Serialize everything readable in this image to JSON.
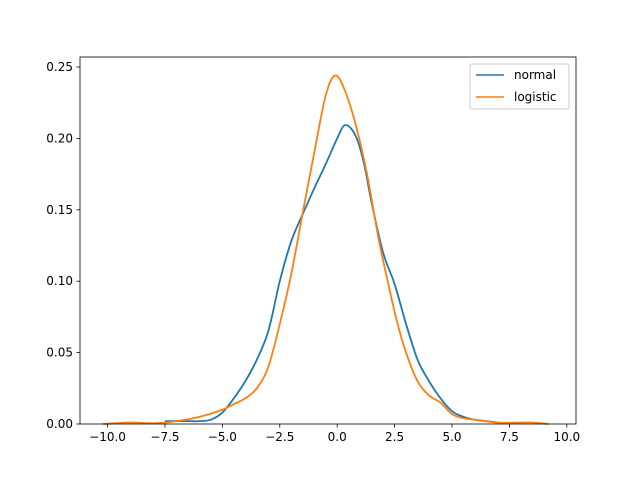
{
  "chart_data": {
    "type": "line",
    "title": "",
    "xlabel": "",
    "ylabel": "",
    "xlim": [
      -11.2,
      10.4
    ],
    "ylim": [
      0,
      0.257
    ],
    "xticks": [
      -10,
      -7.5,
      -5,
      -2.5,
      0,
      2.5,
      5,
      7.5,
      10
    ],
    "xtick_labels": [
      "−10.0",
      "−7.5",
      "−5.0",
      "−2.5",
      "0.0",
      "2.5",
      "5.0",
      "7.5",
      "10.0"
    ],
    "yticks": [
      0,
      0.05,
      0.1,
      0.15,
      0.2,
      0.25
    ],
    "ytick_labels": [
      "0.00",
      "0.05",
      "0.10",
      "0.15",
      "0.20",
      "0.25"
    ],
    "grid": false,
    "legend_position": "top-right",
    "series": [
      {
        "name": "normal",
        "color": "#1f77b4",
        "x": [
          -7.5,
          -6.5,
          -6,
          -5.5,
          -5,
          -4.5,
          -4,
          -3.5,
          -3,
          -2.5,
          -2,
          -1.5,
          -1,
          -0.5,
          0,
          0.3,
          0.6,
          0.9,
          1.2,
          1.5,
          2,
          2.5,
          3,
          3.5,
          4,
          4.5,
          5,
          5.5,
          6,
          6.5,
          7
        ],
        "y": [
          0.002,
          0.002,
          0.002,
          0.003,
          0.008,
          0.018,
          0.03,
          0.045,
          0.065,
          0.1,
          0.128,
          0.147,
          0.165,
          0.182,
          0.2,
          0.209,
          0.207,
          0.198,
          0.18,
          0.155,
          0.12,
          0.098,
          0.07,
          0.045,
          0.03,
          0.018,
          0.009,
          0.005,
          0.003,
          0.002,
          0.001
        ]
      },
      {
        "name": "logistic",
        "color": "#ff7f0e",
        "x": [
          -10.2,
          -9,
          -8,
          -7,
          -6,
          -5,
          -4.5,
          -4,
          -3.5,
          -3,
          -2.5,
          -2,
          -1.5,
          -1,
          -0.5,
          -0.1,
          0.3,
          0.8,
          1.3,
          1.8,
          2.2,
          2.6,
          3,
          3.5,
          4,
          4.5,
          5,
          5.5,
          6,
          7,
          8,
          8.5,
          9.2
        ],
        "y": [
          0,
          0.001,
          0.0005,
          0.002,
          0.005,
          0.01,
          0.014,
          0.018,
          0.025,
          0.04,
          0.07,
          0.105,
          0.148,
          0.19,
          0.23,
          0.244,
          0.235,
          0.21,
          0.175,
          0.13,
          0.1,
          0.072,
          0.05,
          0.03,
          0.02,
          0.015,
          0.007,
          0.004,
          0.003,
          0.001,
          0.001,
          0.001,
          0
        ]
      }
    ]
  }
}
